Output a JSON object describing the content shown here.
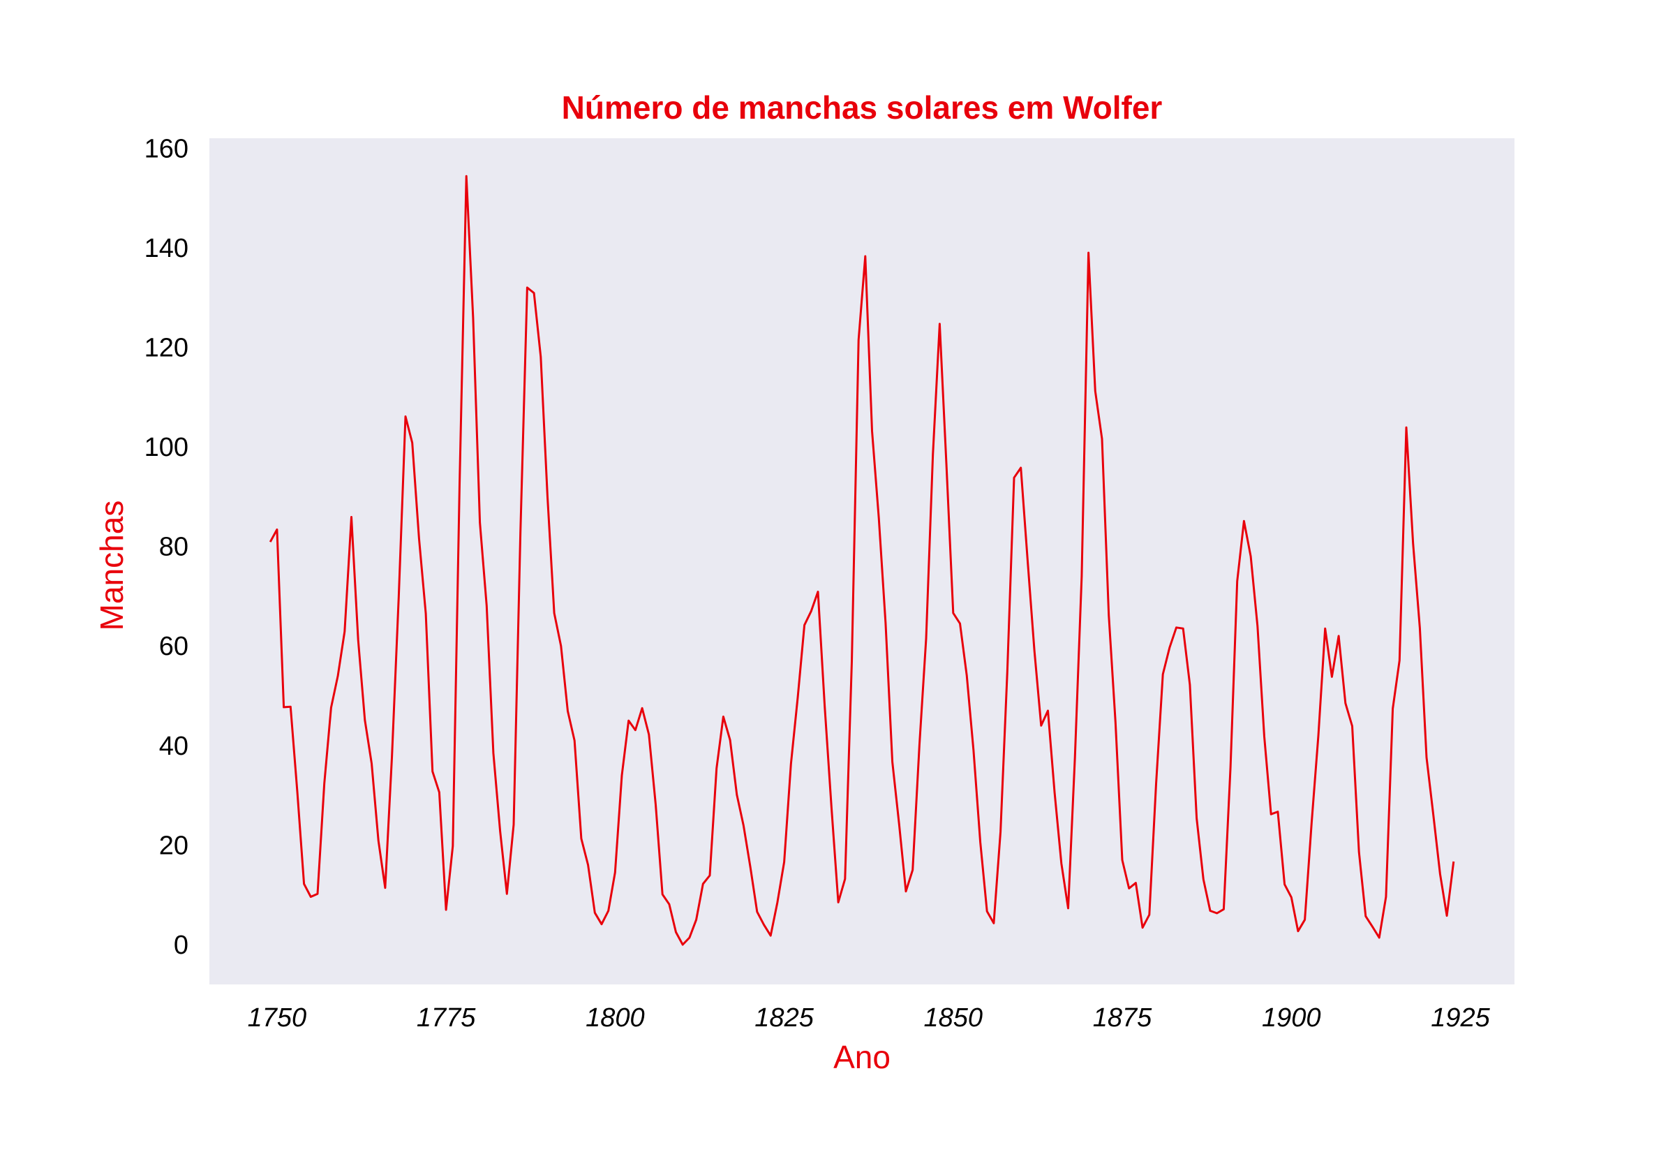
{
  "chart_data": {
    "type": "line",
    "title": "Número de manchas solares em Wolfer",
    "xlabel": "Ano",
    "ylabel": "Manchas",
    "xlim": [
      1740,
      1933
    ],
    "ylim": [
      -8,
      162
    ],
    "xticks": [
      1750,
      1775,
      1800,
      1825,
      1850,
      1875,
      1900,
      1925
    ],
    "yticks": [
      0,
      20,
      40,
      60,
      80,
      100,
      120,
      140,
      160
    ],
    "grid": false,
    "legend": "none",
    "colors": {
      "line": "#e8000b",
      "title": "#e8000b",
      "axis_label": "#e8000b",
      "plot_bg": "#eaeaf2",
      "tick": "#000000"
    },
    "x": [
      1749,
      1750,
      1751,
      1752,
      1753,
      1754,
      1755,
      1756,
      1757,
      1758,
      1759,
      1760,
      1761,
      1762,
      1763,
      1764,
      1765,
      1766,
      1767,
      1768,
      1769,
      1770,
      1771,
      1772,
      1773,
      1774,
      1775,
      1776,
      1777,
      1778,
      1779,
      1780,
      1781,
      1782,
      1783,
      1784,
      1785,
      1786,
      1787,
      1788,
      1789,
      1790,
      1791,
      1792,
      1793,
      1794,
      1795,
      1796,
      1797,
      1798,
      1799,
      1800,
      1801,
      1802,
      1803,
      1804,
      1805,
      1806,
      1807,
      1808,
      1809,
      1810,
      1811,
      1812,
      1813,
      1814,
      1815,
      1816,
      1817,
      1818,
      1819,
      1820,
      1821,
      1822,
      1823,
      1824,
      1825,
      1826,
      1827,
      1828,
      1829,
      1830,
      1831,
      1832,
      1833,
      1834,
      1835,
      1836,
      1837,
      1838,
      1839,
      1840,
      1841,
      1842,
      1843,
      1844,
      1845,
      1846,
      1847,
      1848,
      1849,
      1850,
      1851,
      1852,
      1853,
      1854,
      1855,
      1856,
      1857,
      1858,
      1859,
      1860,
      1861,
      1862,
      1863,
      1864,
      1865,
      1866,
      1867,
      1868,
      1869,
      1870,
      1871,
      1872,
      1873,
      1874,
      1875,
      1876,
      1877,
      1878,
      1879,
      1880,
      1881,
      1882,
      1883,
      1884,
      1885,
      1886,
      1887,
      1888,
      1889,
      1890,
      1891,
      1892,
      1893,
      1894,
      1895,
      1896,
      1897,
      1898,
      1899,
      1900,
      1901,
      1902,
      1903,
      1904,
      1905,
      1906,
      1907,
      1908,
      1909,
      1910,
      1911,
      1912,
      1913,
      1914,
      1915,
      1916,
      1917,
      1918,
      1919,
      1920,
      1921,
      1922,
      1923,
      1924
    ],
    "series": [
      {
        "values": [
          80.9,
          83.4,
          47.7,
          47.8,
          30.7,
          12.2,
          9.6,
          10.2,
          32.4,
          47.6,
          54.0,
          62.9,
          85.9,
          61.2,
          45.1,
          36.4,
          20.9,
          11.4,
          37.8,
          69.8,
          106.1,
          100.8,
          81.6,
          66.5,
          34.8,
          30.6,
          7.0,
          19.8,
          92.5,
          154.4,
          125.9,
          84.8,
          68.1,
          38.5,
          22.8,
          10.2,
          24.1,
          82.9,
          132.0,
          130.9,
          118.1,
          89.9,
          66.6,
          60.0,
          46.9,
          41.0,
          21.3,
          16.0,
          6.4,
          4.1,
          6.8,
          14.5,
          34.0,
          45.0,
          43.1,
          47.5,
          42.2,
          28.1,
          10.1,
          8.1,
          2.5,
          0.0,
          1.4,
          5.0,
          12.2,
          13.9,
          35.4,
          45.8,
          41.1,
          30.1,
          23.9,
          15.6,
          6.6,
          4.0,
          1.8,
          8.5,
          16.6,
          36.3,
          49.6,
          64.2,
          67.0,
          70.9,
          47.8,
          27.5,
          8.5,
          13.2,
          56.9,
          121.5,
          138.3,
          103.2,
          85.7,
          64.6,
          36.7,
          24.2,
          10.7,
          15.0,
          40.1,
          61.5,
          98.5,
          124.7,
          96.3,
          66.6,
          64.5,
          54.1,
          39.0,
          20.6,
          6.7,
          4.3,
          22.7,
          54.8,
          93.8,
          95.8,
          77.2,
          59.1,
          44.0,
          47.0,
          30.5,
          16.3,
          7.3,
          37.6,
          74.0,
          139.0,
          111.2,
          101.6,
          66.2,
          44.7,
          17.0,
          11.3,
          12.4,
          3.4,
          6.0,
          32.3,
          54.3,
          59.7,
          63.7,
          63.5,
          52.2,
          25.4,
          13.1,
          6.8,
          6.3,
          7.1,
          35.6,
          73.0,
          85.1,
          78.0,
          64.0,
          41.8,
          26.2,
          26.7,
          12.1,
          9.5,
          2.7,
          5.0,
          24.4,
          42.0,
          63.5,
          53.8,
          62.0,
          48.5,
          43.9,
          18.6,
          5.7,
          3.6,
          1.4,
          9.6,
          47.4,
          57.1,
          103.9,
          80.6,
          63.6,
          37.6,
          26.1,
          14.2,
          5.8,
          16.7
        ]
      }
    ]
  }
}
